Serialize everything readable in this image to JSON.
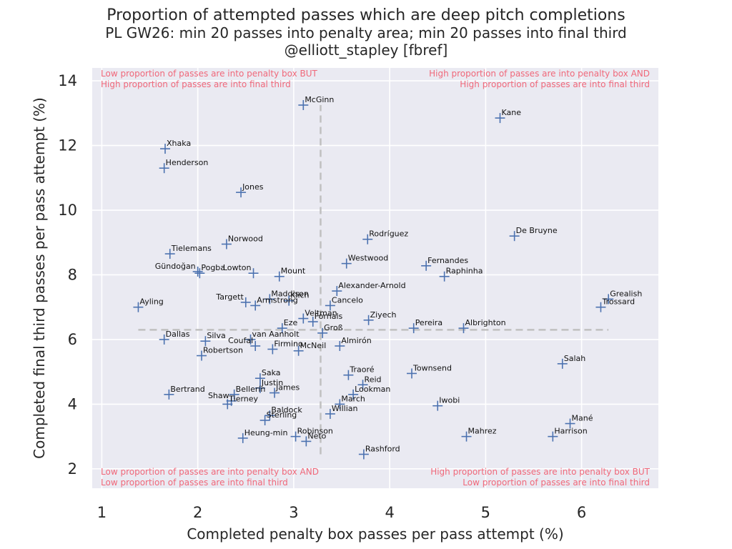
{
  "chart_data": {
    "type": "scatter",
    "title": "Proportion of attempted passes which are deep pitch completions",
    "subtitle": "PL GW26: min 20 passes into penalty area; min 20 passes into final third",
    "credit": "@elliott_stapley [fbref]",
    "xlabel": "Completed penalty box passes per pass attempt (%)",
    "ylabel": "Completed final third passes per pass attempt (%)",
    "xlim": [
      0.9,
      6.8
    ],
    "ylim": [
      1.4,
      14.4
    ],
    "xticks": [
      1,
      2,
      3,
      4,
      5,
      6
    ],
    "yticks": [
      2,
      4,
      6,
      8,
      10,
      12,
      14
    ],
    "grid": true,
    "marker_color": "#4c72b0",
    "background_color": "#eaeaf2",
    "reference_lines": {
      "x": 3.28,
      "y": 6.3,
      "color": "#c0c0c0",
      "style": "dashed"
    },
    "quadrant_labels": {
      "top_left": [
        "Low proportion of passes are into penalty box BUT",
        "High proportion of passes are into final third"
      ],
      "top_right": [
        "High proportion of passes are into penalty box AND",
        "High proportion of passes are into final third"
      ],
      "bottom_left": [
        "Low proportion of passes are into penalty box AND",
        "Low proportion of passes are into final third"
      ],
      "bottom_right": [
        "High proportion of passes are into penalty box BUT",
        "Low proportion of passes are into final third"
      ]
    },
    "points": [
      {
        "name": "McGinn",
        "x": 3.1,
        "y": 13.25
      },
      {
        "name": "Kane",
        "x": 5.15,
        "y": 12.85
      },
      {
        "name": "Xhaka",
        "x": 1.66,
        "y": 11.9
      },
      {
        "name": "Henderson",
        "x": 1.65,
        "y": 11.3
      },
      {
        "name": "Jones",
        "x": 2.45,
        "y": 10.55
      },
      {
        "name": "Rodríguez",
        "x": 3.77,
        "y": 9.1
      },
      {
        "name": "De Bruyne",
        "x": 5.3,
        "y": 9.2
      },
      {
        "name": "Norwood",
        "x": 2.3,
        "y": 8.95
      },
      {
        "name": "Tielemans",
        "x": 1.71,
        "y": 8.65
      },
      {
        "name": "Westwood",
        "x": 3.55,
        "y": 8.35
      },
      {
        "name": "Fernandes",
        "x": 4.38,
        "y": 8.28
      },
      {
        "name": "Gündoğan",
        "x": 2.0,
        "y": 8.1
      },
      {
        "name": "Pogba",
        "x": 2.02,
        "y": 8.05
      },
      {
        "name": "Lowton",
        "x": 2.58,
        "y": 8.05
      },
      {
        "name": "Mount",
        "x": 2.85,
        "y": 7.95
      },
      {
        "name": "Raphinha",
        "x": 4.57,
        "y": 7.95
      },
      {
        "name": "Alexander-Arnold",
        "x": 3.45,
        "y": 7.5
      },
      {
        "name": "Grealish",
        "x": 6.28,
        "y": 7.25
      },
      {
        "name": "Maddison",
        "x": 2.75,
        "y": 7.25
      },
      {
        "name": "Klich",
        "x": 2.95,
        "y": 7.2
      },
      {
        "name": "Targett",
        "x": 2.5,
        "y": 7.15
      },
      {
        "name": "Armstrong",
        "x": 2.6,
        "y": 7.05
      },
      {
        "name": "Trossard",
        "x": 6.2,
        "y": 7.0
      },
      {
        "name": "Ayling",
        "x": 1.38,
        "y": 7.0
      },
      {
        "name": "Cancelo",
        "x": 3.38,
        "y": 7.05
      },
      {
        "name": "Veltman",
        "x": 3.1,
        "y": 6.65
      },
      {
        "name": "Fornals",
        "x": 3.2,
        "y": 6.55
      },
      {
        "name": "Ziyech",
        "x": 3.78,
        "y": 6.6
      },
      {
        "name": "Eze",
        "x": 2.88,
        "y": 6.35
      },
      {
        "name": "Pereira",
        "x": 4.25,
        "y": 6.35
      },
      {
        "name": "Albrighton",
        "x": 4.77,
        "y": 6.35
      },
      {
        "name": "Groß",
        "x": 3.3,
        "y": 6.2
      },
      {
        "name": "Dallas",
        "x": 1.65,
        "y": 6.0
      },
      {
        "name": "Silva",
        "x": 2.08,
        "y": 5.95
      },
      {
        "name": "van Aanholt",
        "x": 2.55,
        "y": 6.0
      },
      {
        "name": "Coufal",
        "x": 2.6,
        "y": 5.8
      },
      {
        "name": "Firmino",
        "x": 2.78,
        "y": 5.7
      },
      {
        "name": "McNeil",
        "x": 3.05,
        "y": 5.65
      },
      {
        "name": "Almirón",
        "x": 3.48,
        "y": 5.8
      },
      {
        "name": "Robertson",
        "x": 2.04,
        "y": 5.5
      },
      {
        "name": "Salah",
        "x": 5.8,
        "y": 5.25
      },
      {
        "name": "Townsend",
        "x": 4.23,
        "y": 4.95
      },
      {
        "name": "Traoré",
        "x": 3.57,
        "y": 4.9
      },
      {
        "name": "Saka",
        "x": 2.65,
        "y": 4.8
      },
      {
        "name": "Reid",
        "x": 3.72,
        "y": 4.6
      },
      {
        "name": "Justin",
        "x": 2.65,
        "y": 4.5
      },
      {
        "name": "James",
        "x": 2.8,
        "y": 4.35
      },
      {
        "name": "Lookman",
        "x": 3.62,
        "y": 4.3
      },
      {
        "name": "Bertrand",
        "x": 1.7,
        "y": 4.3
      },
      {
        "name": "Bellerín",
        "x": 2.38,
        "y": 4.3
      },
      {
        "name": "Shaw",
        "x": 2.35,
        "y": 4.1
      },
      {
        "name": "Tierney",
        "x": 2.31,
        "y": 4.0
      },
      {
        "name": "Iwobi",
        "x": 4.5,
        "y": 3.95
      },
      {
        "name": "March",
        "x": 3.48,
        "y": 4.0
      },
      {
        "name": "Baldock",
        "x": 2.75,
        "y": 3.65
      },
      {
        "name": "Willian",
        "x": 3.38,
        "y": 3.7
      },
      {
        "name": "Mané",
        "x": 5.88,
        "y": 3.4
      },
      {
        "name": "Sterling",
        "x": 2.7,
        "y": 3.5
      },
      {
        "name": "Heung-min",
        "x": 2.47,
        "y": 2.95
      },
      {
        "name": "Robinson",
        "x": 3.02,
        "y": 3.0
      },
      {
        "name": "Mahrez",
        "x": 4.8,
        "y": 3.0
      },
      {
        "name": "Harrison",
        "x": 5.7,
        "y": 3.0
      },
      {
        "name": "Neto",
        "x": 3.13,
        "y": 2.85
      },
      {
        "name": "Rashford",
        "x": 3.73,
        "y": 2.45
      }
    ]
  }
}
